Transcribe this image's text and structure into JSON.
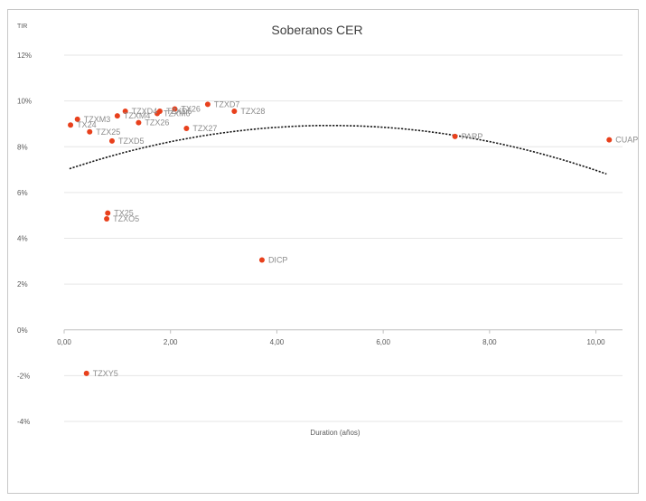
{
  "chart_data": {
    "type": "scatter",
    "title": "Soberanos CER",
    "ylabel": "TIR",
    "xlabel": "Duration (años)",
    "xlim": [
      0,
      10.5
    ],
    "ylim": [
      -4,
      12
    ],
    "x_ticks": [
      0,
      2,
      4,
      6,
      8,
      10
    ],
    "x_tick_labels": [
      "0,00",
      "2,00",
      "4,00",
      "6,00",
      "8,00",
      "10,00"
    ],
    "y_ticks": [
      -4,
      -2,
      0,
      2,
      4,
      6,
      8,
      10,
      12
    ],
    "y_tick_labels": [
      "-4%",
      "-2%",
      "0%",
      "2%",
      "4%",
      "6%",
      "8%",
      "10%",
      "12%"
    ],
    "grid": "horizontal",
    "points": [
      {
        "label": "TZXM3",
        "x": 0.25,
        "y": 9.2
      },
      {
        "label": "TX24",
        "x": 0.12,
        "y": 8.95
      },
      {
        "label": "TZX25",
        "x": 0.48,
        "y": 8.65
      },
      {
        "label": "TZXD5",
        "x": 0.9,
        "y": 8.25
      },
      {
        "label": "TZXM4",
        "x": 1.0,
        "y": 9.35
      },
      {
        "label": "TZXD4",
        "x": 1.15,
        "y": 9.55
      },
      {
        "label": "TZX26",
        "x": 1.4,
        "y": 9.05
      },
      {
        "label": "TZXM6",
        "x": 1.75,
        "y": 9.45
      },
      {
        "label": "TZXD6",
        "x": 1.8,
        "y": 9.55
      },
      {
        "label": "TZX27",
        "x": 2.3,
        "y": 8.8
      },
      {
        "label": "TZXD7",
        "x": 2.7,
        "y": 9.85
      },
      {
        "label": "TX26",
        "x": 2.08,
        "y": 9.65
      },
      {
        "label": "TZX28",
        "x": 3.2,
        "y": 9.55
      },
      {
        "label": "TX25",
        "x": 0.82,
        "y": 5.1
      },
      {
        "label": "TZXO5",
        "x": 0.8,
        "y": 4.85
      },
      {
        "label": "DICP",
        "x": 3.72,
        "y": 3.05
      },
      {
        "label": "PARP",
        "x": 7.35,
        "y": 8.45
      },
      {
        "label": "CUAP",
        "x": 10.25,
        "y": 8.3
      },
      {
        "label": "TZXY5",
        "x": 0.42,
        "y": -1.9
      }
    ],
    "trendline": {
      "type": "polynomial",
      "coefficients": [
        -0.0785,
        0.786,
        6.96
      ]
    }
  }
}
